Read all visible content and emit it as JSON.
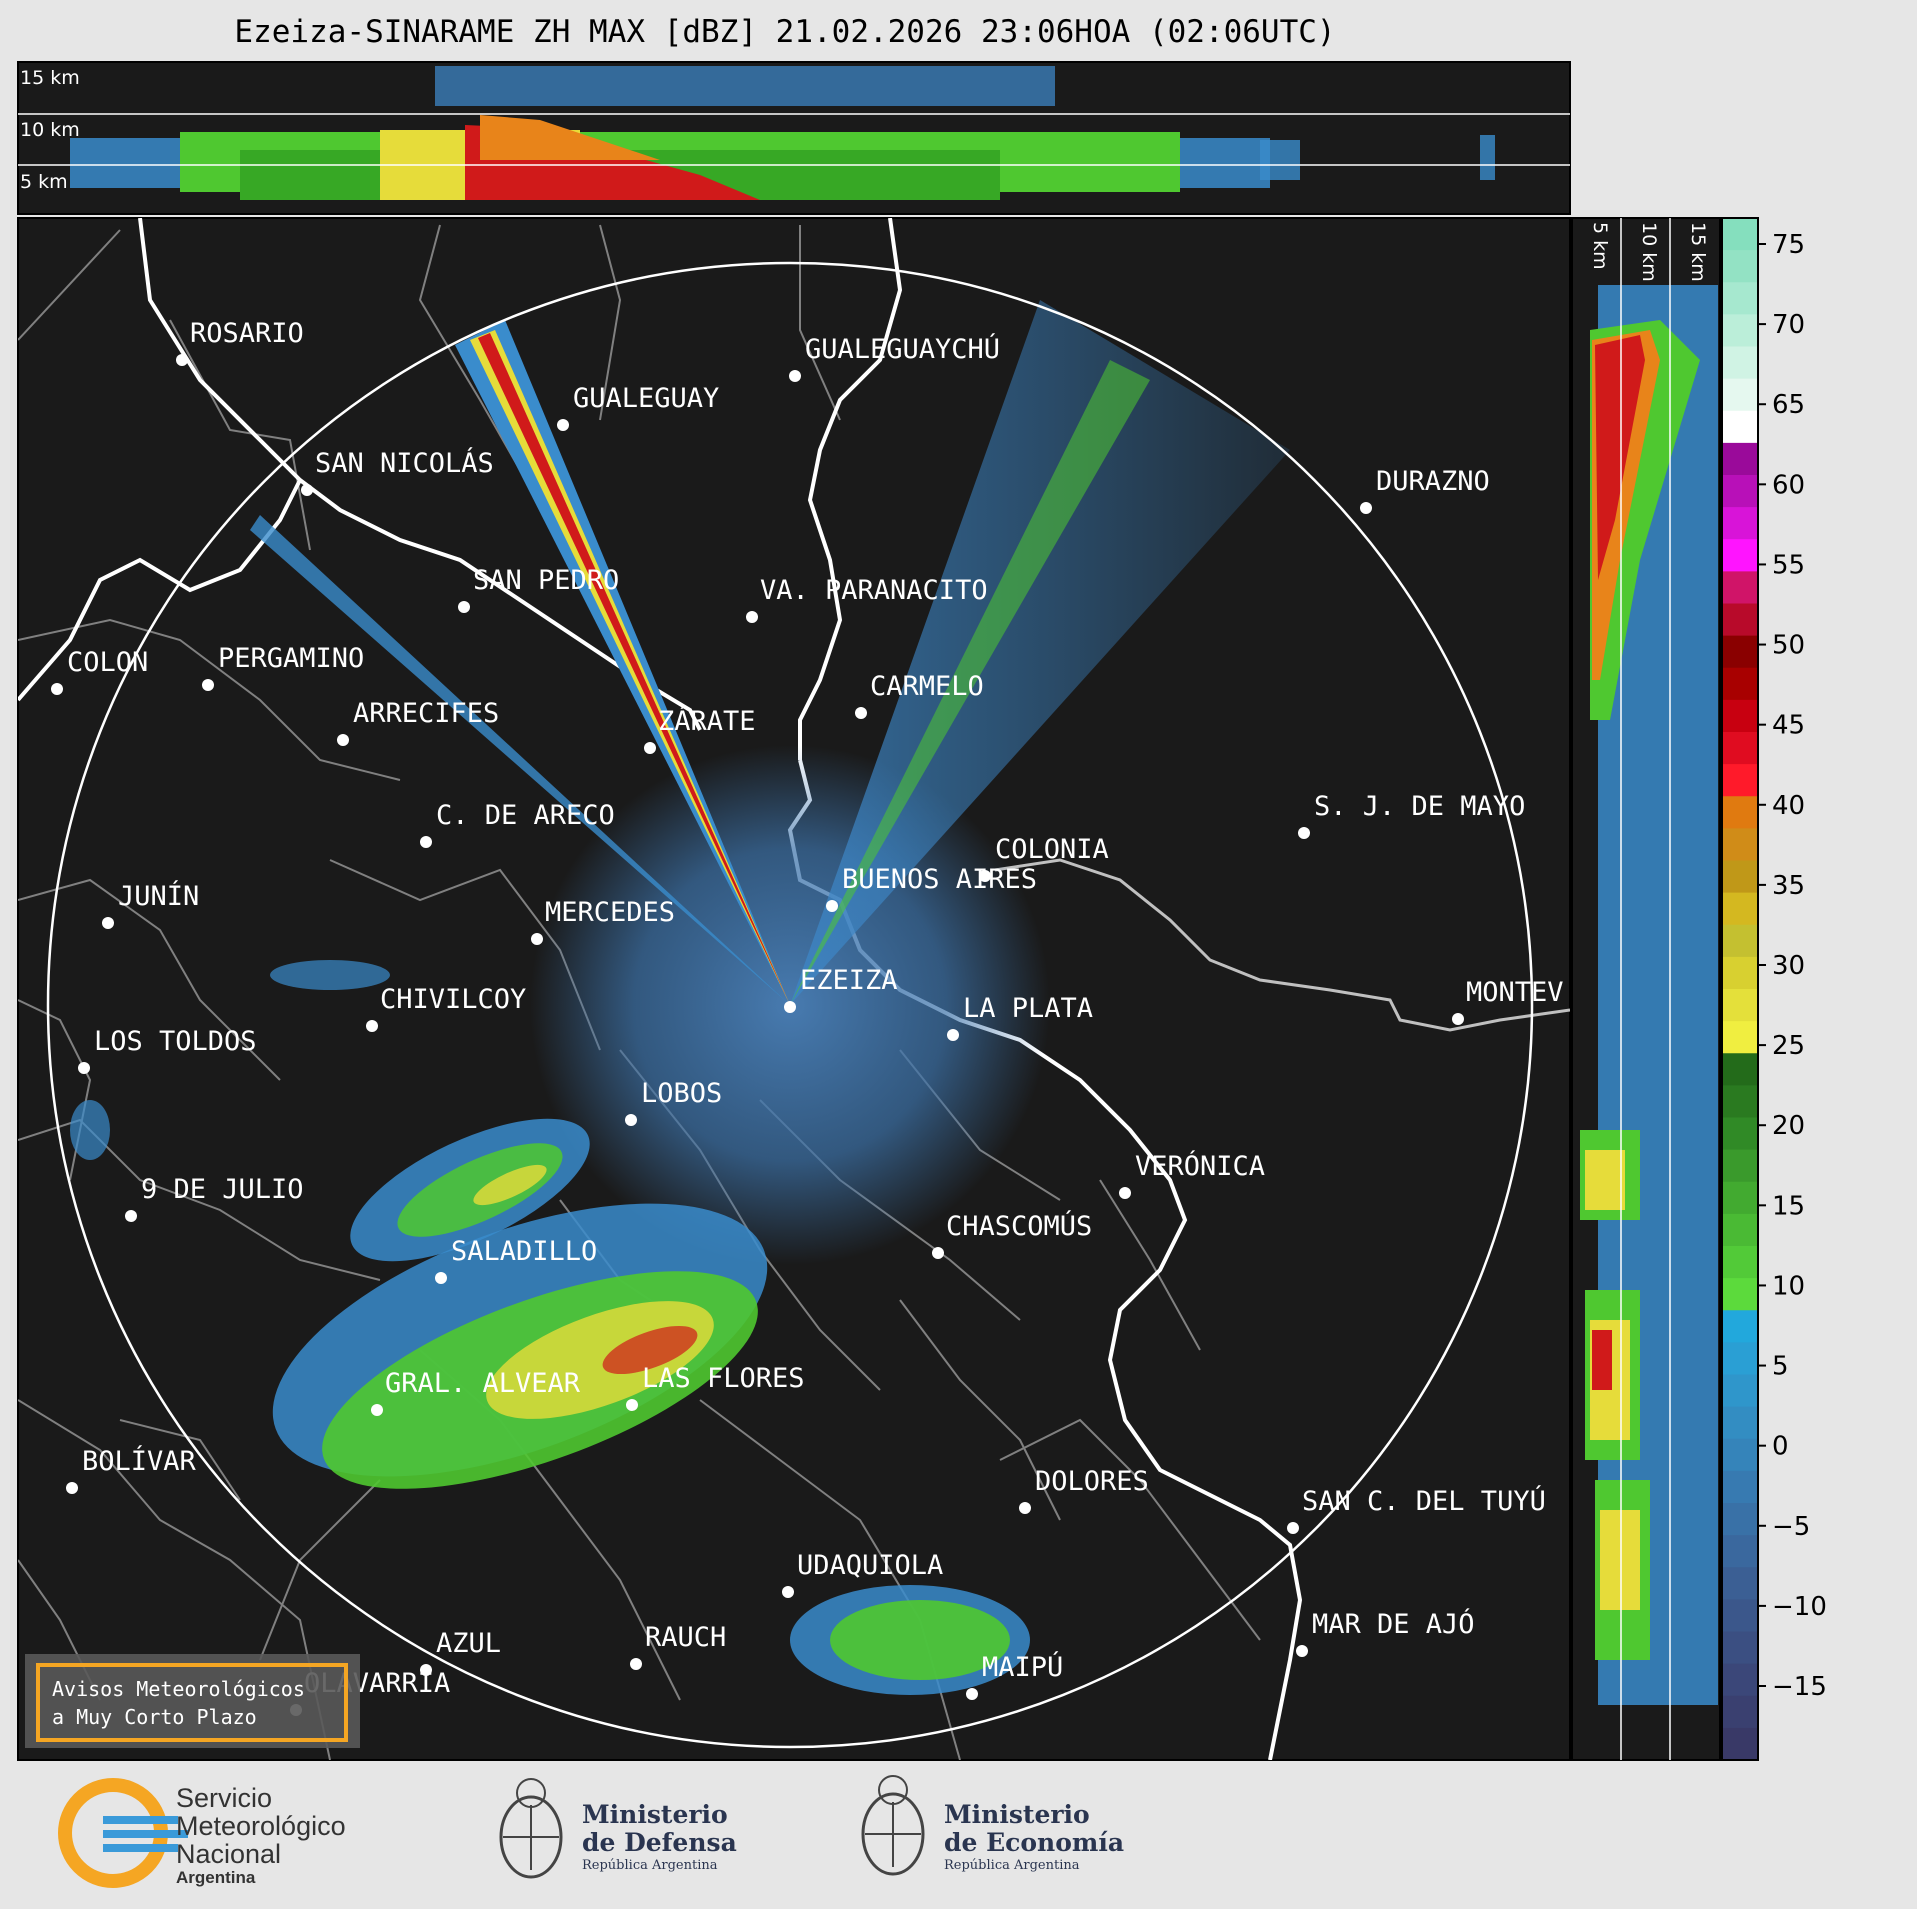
{
  "title": "Ezeiza-SINARAME ZH MAX [dBZ] 21.02.2026 23:06HOA (02:06UTC)",
  "top_panel": {
    "height_labels": [
      "15 km",
      "10 km",
      "5 km"
    ]
  },
  "side_panel": {
    "height_labels": [
      "5 km",
      "10 km",
      "15 km"
    ]
  },
  "colorbar": {
    "ticks": [
      "75",
      "70",
      "65",
      "60",
      "55",
      "50",
      "45",
      "40",
      "35",
      "30",
      "25",
      "20",
      "15",
      "10",
      "5",
      "0",
      "−5",
      "−10",
      "−15"
    ]
  },
  "cities": [
    {
      "name": "ROSARIO"
    },
    {
      "name": "GUALEGUAYCHÚ"
    },
    {
      "name": "GUALEGUAY"
    },
    {
      "name": "SAN NICOLÁS"
    },
    {
      "name": "DURAZNO"
    },
    {
      "name": "SAN PEDRO"
    },
    {
      "name": "VA. PARANACITO"
    },
    {
      "name": "COLON"
    },
    {
      "name": "PERGAMINO"
    },
    {
      "name": "CARMELO"
    },
    {
      "name": "ARRECIFES"
    },
    {
      "name": "ZÁRATE"
    },
    {
      "name": "S. J. DE MAYO"
    },
    {
      "name": "C. DE ARECO"
    },
    {
      "name": "COLONIA"
    },
    {
      "name": "BUENOS AIRES"
    },
    {
      "name": "JUNÍN"
    },
    {
      "name": "MERCEDES"
    },
    {
      "name": "EZEIZA"
    },
    {
      "name": "MONTEV"
    },
    {
      "name": "CHIVILCOY"
    },
    {
      "name": "LA PLATA"
    },
    {
      "name": "LOS TOLDOS"
    },
    {
      "name": "LOBOS"
    },
    {
      "name": "VERÓNICA"
    },
    {
      "name": "9 DE JULIO"
    },
    {
      "name": "CHASCOMÚS"
    },
    {
      "name": "SALADILLO"
    },
    {
      "name": "GRAL. ALVEAR"
    },
    {
      "name": "LAS FLORES"
    },
    {
      "name": "BOLÍVAR"
    },
    {
      "name": "DOLORES"
    },
    {
      "name": "SAN C. DEL TUYÚ"
    },
    {
      "name": "UDAQUIOLA"
    },
    {
      "name": "AZUL"
    },
    {
      "name": "RAUCH"
    },
    {
      "name": "MAR DE AJÓ"
    },
    {
      "name": "OLAVARRÍA"
    },
    {
      "name": "MAIPÚ"
    }
  ],
  "warning_box": {
    "line1": "Avisos Meteorológicos",
    "line2": "a Muy Corto Plazo",
    "border_color": "#f5a623"
  },
  "footer": {
    "smn": {
      "line1": "Servicio",
      "line2": "Meteorológico",
      "line3": "Nacional",
      "line4": "Argentina"
    },
    "defensa": {
      "line1": "Ministerio",
      "line2": "de Defensa",
      "line3": "República Argentina"
    },
    "economia": {
      "line1": "Ministerio",
      "line2": "de Economía",
      "line3": "República Argentina"
    }
  },
  "colors": {
    "background": "#1a1a1a",
    "river": "#ffffff",
    "range_ring": "#ffffff",
    "borders": "#808080",
    "accent": "#f5a623"
  }
}
